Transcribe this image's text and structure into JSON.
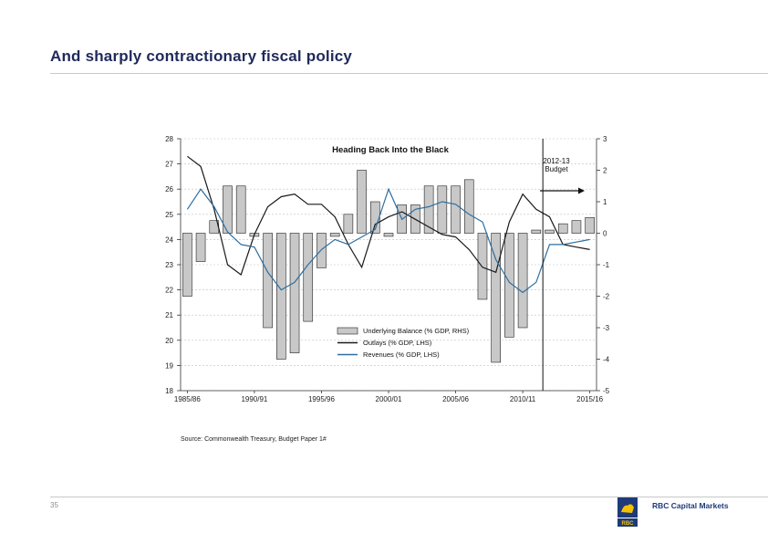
{
  "slide": {
    "title": "And sharply contractionary fiscal policy",
    "source": "Source: Commonwealth Treasury, Budget Paper 1#",
    "page_number": "35",
    "logo_text": "RBC Capital Markets",
    "logo_mark": "RBC",
    "colors": {
      "title": "#1f2a5a",
      "brand_blue": "#1f3a7a",
      "brand_yellow": "#f2c200"
    }
  },
  "chart_data": {
    "type": "bar+line",
    "title": "Heading Back Into the Black",
    "annotation": {
      "line1": "2012-13",
      "line2": "Budget",
      "marker_year": "2012/13"
    },
    "x_tick_labels": [
      "1985/86",
      "1990/91",
      "1995/96",
      "2000/01",
      "2005/06",
      "2010/11",
      "2015/16"
    ],
    "years": [
      "1985/86",
      "1986/87",
      "1987/88",
      "1988/89",
      "1989/90",
      "1990/91",
      "1991/92",
      "1992/93",
      "1993/94",
      "1994/95",
      "1995/96",
      "1996/97",
      "1997/98",
      "1998/99",
      "1999/00",
      "2000/01",
      "2001/02",
      "2002/03",
      "2003/04",
      "2004/05",
      "2005/06",
      "2006/07",
      "2007/08",
      "2008/09",
      "2009/10",
      "2010/11",
      "2011/12",
      "2012/13",
      "2013/14",
      "2014/15",
      "2015/16"
    ],
    "y_left": {
      "min": 18,
      "max": 28,
      "ticks": [
        18,
        19,
        20,
        21,
        22,
        23,
        24,
        25,
        26,
        27,
        28
      ]
    },
    "y_right": {
      "min": -5,
      "max": 3,
      "ticks": [
        3,
        2,
        1,
        0,
        -1,
        -2,
        -3,
        -4,
        -5
      ]
    },
    "series": [
      {
        "name": "Underlying Balance (% GDP, RHS)",
        "kind": "bar",
        "axis": "right",
        "color": "#c8c8c8",
        "values": [
          -2.0,
          -0.9,
          0.4,
          1.5,
          1.5,
          -0.1,
          -3.0,
          -4.0,
          -3.8,
          -2.8,
          -1.1,
          -0.1,
          0.6,
          2.0,
          1.0,
          -0.1,
          0.9,
          0.9,
          1.5,
          1.5,
          1.5,
          1.7,
          -2.1,
          -4.1,
          -3.3,
          -3.0,
          0.1,
          0.1,
          0.3,
          0.4,
          0.5
        ]
      },
      {
        "name": "Outlays (% GDP, LHS)",
        "kind": "line",
        "axis": "left",
        "color": "#1a1a1a",
        "values": [
          27.3,
          26.9,
          25.2,
          23.0,
          22.6,
          24.2,
          25.3,
          25.7,
          25.8,
          25.4,
          25.4,
          24.9,
          23.8,
          22.9,
          24.6,
          24.9,
          25.1,
          24.8,
          24.5,
          24.2,
          24.1,
          23.6,
          22.9,
          22.7,
          24.7,
          25.8,
          25.2,
          24.9,
          23.8,
          23.7,
          23.6
        ]
      },
      {
        "name": "Revenues (% GDP, LHS)",
        "kind": "line",
        "axis": "left",
        "color": "#2f6e9e",
        "values": [
          25.2,
          26.0,
          25.3,
          24.3,
          23.8,
          23.7,
          22.7,
          22.0,
          22.3,
          23.0,
          23.6,
          24.0,
          23.8,
          24.1,
          24.4,
          26.0,
          24.8,
          25.2,
          25.3,
          25.5,
          25.4,
          25.0,
          24.7,
          23.2,
          22.3,
          21.9,
          22.3,
          23.8,
          23.8,
          23.9,
          24.0
        ]
      }
    ]
  }
}
